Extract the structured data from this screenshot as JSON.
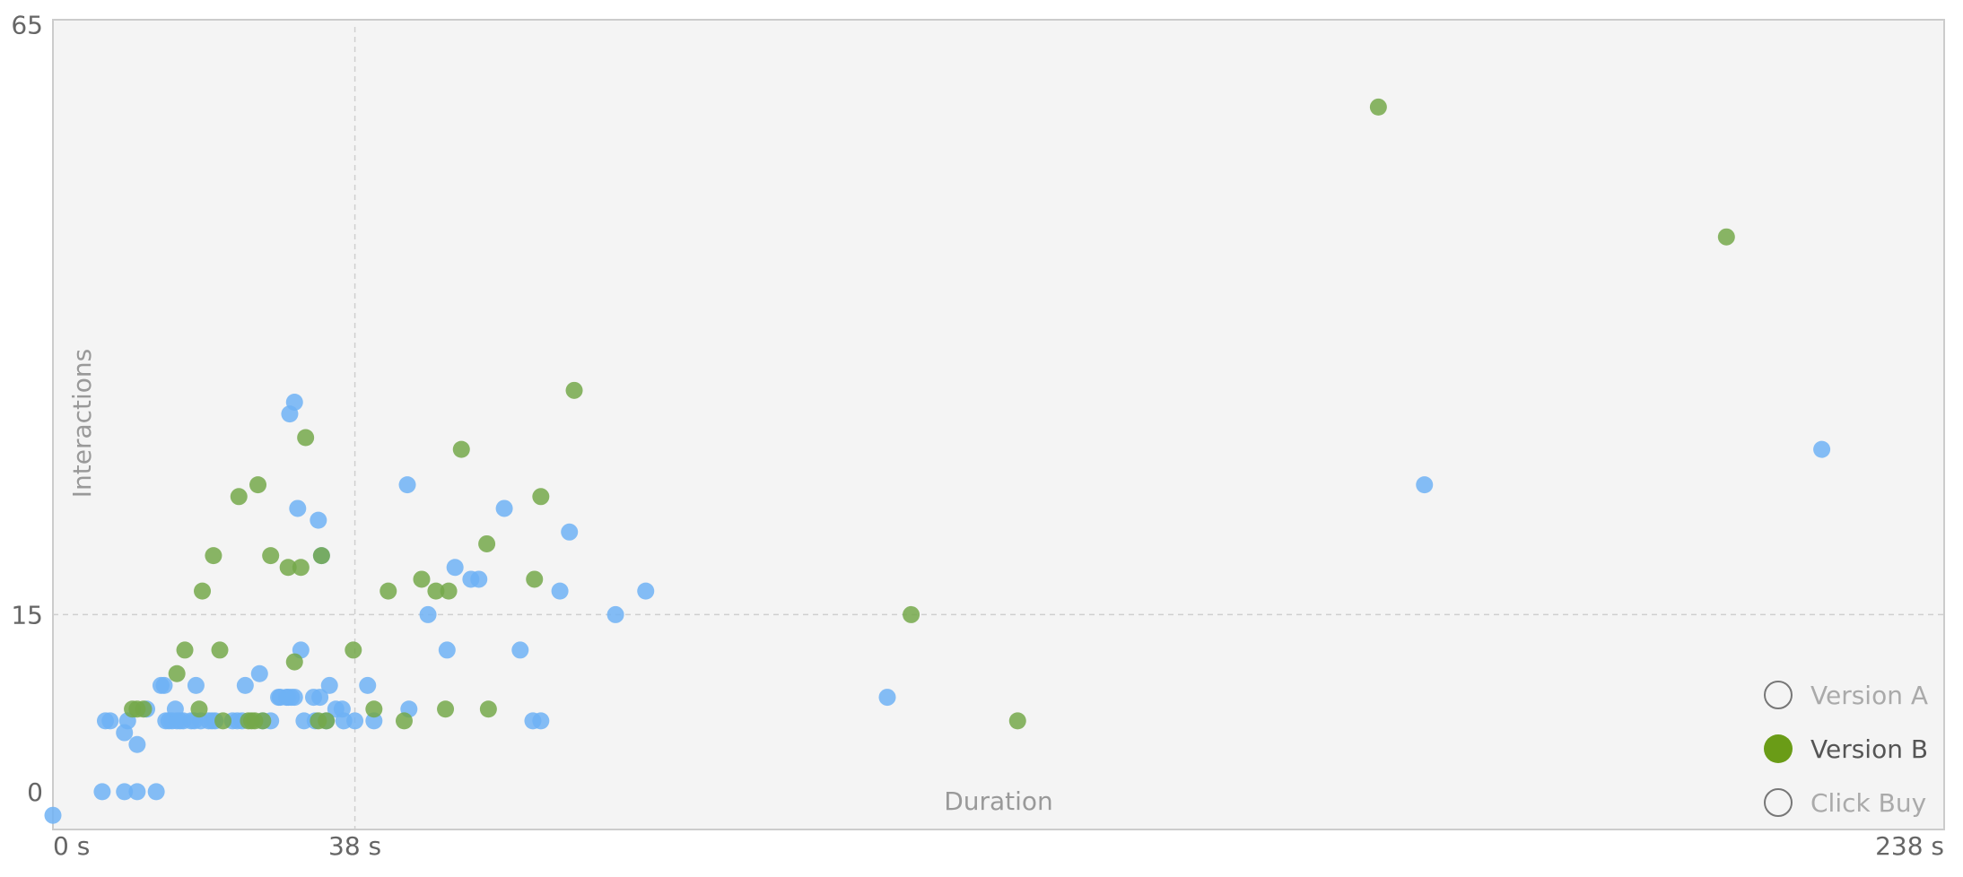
{
  "chart_data": {
    "type": "scatter",
    "xlabel": "Duration",
    "ylabel": "Interactions",
    "x_ticks": [
      {
        "value": 0,
        "label": "0 s"
      },
      {
        "value": 38,
        "label": "38 s"
      },
      {
        "value": 238,
        "label": "238 s"
      }
    ],
    "y_ticks": [
      {
        "value": 0,
        "label": "0"
      },
      {
        "value": 15,
        "label": "15"
      },
      {
        "value": 65,
        "label": "65"
      }
    ],
    "xlim": [
      0,
      238
    ],
    "ylim": [
      -3.2,
      65.4
    ],
    "grid": {
      "x_reference": 38,
      "y_reference": 15
    },
    "legend_placement": "bottom-right",
    "series": [
      {
        "name": "Version A",
        "color": "#6FB2F5",
        "selected": false,
        "points": [
          [
            0,
            -2
          ],
          [
            6.2,
            0
          ],
          [
            9,
            0
          ],
          [
            10.6,
            0
          ],
          [
            13,
            0
          ],
          [
            6.6,
            6
          ],
          [
            7.2,
            6
          ],
          [
            9,
            5
          ],
          [
            9.4,
            6
          ],
          [
            10.6,
            4
          ],
          [
            11.8,
            7
          ],
          [
            13.6,
            9
          ],
          [
            14,
            9
          ],
          [
            14.2,
            6
          ],
          [
            14.6,
            6
          ],
          [
            15,
            6
          ],
          [
            15.4,
            7
          ],
          [
            15.6,
            6
          ],
          [
            16,
            6
          ],
          [
            16.4,
            6
          ],
          [
            17.4,
            6
          ],
          [
            17.8,
            6
          ],
          [
            18,
            9
          ],
          [
            18.6,
            6
          ],
          [
            19.6,
            6
          ],
          [
            20,
            6
          ],
          [
            20.4,
            6
          ],
          [
            22.6,
            6
          ],
          [
            23.2,
            6
          ],
          [
            23.8,
            6
          ],
          [
            24.2,
            9
          ],
          [
            26,
            10
          ],
          [
            26.4,
            6
          ],
          [
            27.4,
            6
          ],
          [
            28.4,
            8
          ],
          [
            28.6,
            8
          ],
          [
            29.4,
            8
          ],
          [
            29.6,
            8
          ],
          [
            30,
            8
          ],
          [
            30.4,
            8
          ],
          [
            31.6,
            6
          ],
          [
            32.8,
            8
          ],
          [
            33,
            6
          ],
          [
            33.6,
            8
          ],
          [
            34.4,
            6
          ],
          [
            34.8,
            9
          ],
          [
            35.6,
            7
          ],
          [
            36.4,
            7
          ],
          [
            38,
            6
          ],
          [
            29.8,
            32
          ],
          [
            30.4,
            33
          ],
          [
            30.8,
            24
          ],
          [
            31.2,
            12
          ],
          [
            33.4,
            23
          ],
          [
            33.8,
            20
          ],
          [
            36.6,
            6
          ],
          [
            39.6,
            9
          ],
          [
            40.4,
            6
          ],
          [
            44.6,
            26
          ],
          [
            44.8,
            7
          ],
          [
            47.2,
            15
          ],
          [
            49.6,
            12
          ],
          [
            50.6,
            19
          ],
          [
            52.6,
            18
          ],
          [
            53.6,
            18
          ],
          [
            56.8,
            24
          ],
          [
            58.8,
            12
          ],
          [
            60.4,
            6
          ],
          [
            61.4,
            6
          ],
          [
            63.8,
            17
          ],
          [
            65,
            22
          ],
          [
            70.8,
            15
          ],
          [
            74.6,
            17
          ],
          [
            105,
            8
          ],
          [
            172.6,
            26
          ],
          [
            222.6,
            29
          ]
        ]
      },
      {
        "name": "Version B",
        "color": "#74A84A",
        "selected": true,
        "points": [
          [
            10,
            7
          ],
          [
            10.6,
            7
          ],
          [
            11.4,
            7
          ],
          [
            15.6,
            10
          ],
          [
            16.6,
            12
          ],
          [
            18.4,
            7
          ],
          [
            18.8,
            17
          ],
          [
            20.2,
            20
          ],
          [
            21,
            12
          ],
          [
            21.4,
            6
          ],
          [
            23.4,
            25
          ],
          [
            24.6,
            6
          ],
          [
            25,
            6
          ],
          [
            25.4,
            6
          ],
          [
            25.8,
            26
          ],
          [
            26.4,
            6
          ],
          [
            27.4,
            20
          ],
          [
            29.6,
            19
          ],
          [
            30.4,
            11
          ],
          [
            31.2,
            19
          ],
          [
            31.8,
            30
          ],
          [
            33.4,
            6
          ],
          [
            33.8,
            20
          ],
          [
            34.4,
            6
          ],
          [
            37.8,
            12
          ],
          [
            40.4,
            7
          ],
          [
            42.2,
            17
          ],
          [
            44.2,
            6
          ],
          [
            46.4,
            18
          ],
          [
            48.2,
            17
          ],
          [
            49.4,
            7
          ],
          [
            49.8,
            17
          ],
          [
            51.4,
            29
          ],
          [
            54.8,
            7
          ],
          [
            54.6,
            21
          ],
          [
            60.6,
            18
          ],
          [
            61.4,
            25
          ],
          [
            65.6,
            34
          ],
          [
            108,
            15
          ],
          [
            121.4,
            6
          ],
          [
            166.8,
            58
          ],
          [
            210.6,
            47
          ]
        ]
      },
      {
        "name": "Click Buy",
        "color": "#8E8E8E",
        "selected": false,
        "points": []
      }
    ]
  }
}
